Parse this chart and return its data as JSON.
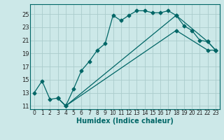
{
  "title": "",
  "xlabel": "Humidex (Indice chaleur)",
  "background_color": "#cce8e8",
  "grid_color": "#aacccc",
  "line_color": "#006666",
  "xlim": [
    -0.5,
    23.5
  ],
  "ylim": [
    10.5,
    26.5
  ],
  "xticks": [
    0,
    1,
    2,
    3,
    4,
    5,
    6,
    7,
    8,
    9,
    10,
    11,
    12,
    13,
    14,
    15,
    16,
    17,
    18,
    19,
    20,
    21,
    22,
    23
  ],
  "yticks": [
    11,
    13,
    15,
    17,
    19,
    21,
    23,
    25
  ],
  "line1_x": [
    0,
    1,
    2,
    3,
    4,
    5,
    6,
    7,
    8,
    9,
    10,
    11,
    12,
    13,
    14,
    15,
    16,
    17,
    18,
    19,
    20,
    21,
    22,
    23
  ],
  "line1_y": [
    13.0,
    14.8,
    12.0,
    12.2,
    11.0,
    13.6,
    16.4,
    17.8,
    19.5,
    20.5,
    24.8,
    24.0,
    24.8,
    25.5,
    25.5,
    25.2,
    25.2,
    25.5,
    24.8,
    23.2,
    22.5,
    21.0,
    20.8,
    19.5
  ],
  "line2_x": [
    3,
    4,
    18,
    22,
    23
  ],
  "line2_y": [
    12.2,
    11.0,
    24.8,
    20.8,
    19.5
  ],
  "line3_x": [
    3,
    4,
    18,
    22,
    23
  ],
  "line3_y": [
    12.2,
    11.0,
    22.5,
    19.5,
    19.5
  ],
  "xlabel_fontsize": 7,
  "tick_fontsize": 5.5,
  "ytick_fontsize": 6
}
